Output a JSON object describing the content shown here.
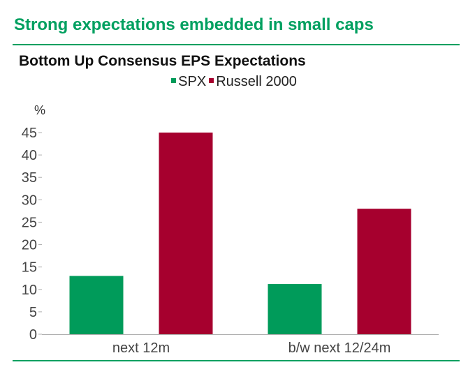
{
  "header": {
    "title": "Strong expectations embedded in small caps"
  },
  "chart_data": {
    "type": "bar",
    "title": "Bottom Up Consensus EPS Expectations",
    "ylabel": "%",
    "xlabel": "",
    "ylim": [
      0,
      45
    ],
    "yticks": [
      0,
      5,
      10,
      15,
      20,
      25,
      30,
      35,
      40,
      45
    ],
    "grid": false,
    "legend_position": "top-center",
    "categories": [
      "next 12m",
      "b/w next 12/24m"
    ],
    "series": [
      {
        "name": "SPX",
        "color": "#009b5a",
        "values": [
          13,
          11.2
        ]
      },
      {
        "name": "Russell 2000",
        "color": "#a6002e",
        "values": [
          45,
          28
        ]
      }
    ]
  }
}
